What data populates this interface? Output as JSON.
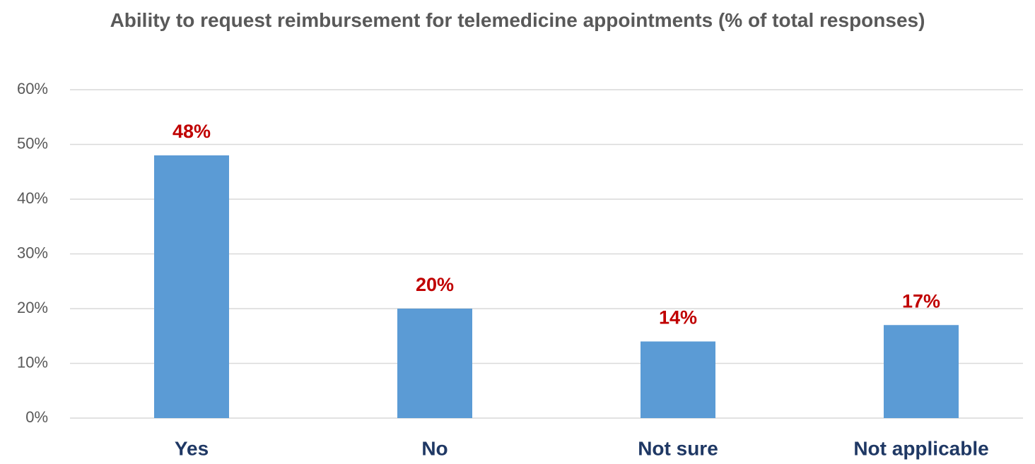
{
  "chart_data": {
    "type": "bar",
    "title": "Ability to request reimbursement for telemedicine appointments (% of total responses)",
    "categories": [
      "Yes",
      "No",
      "Not sure",
      "Not applicable"
    ],
    "values": [
      48,
      20,
      14,
      17
    ],
    "value_labels": [
      "48%",
      "20%",
      "14%",
      "17%"
    ],
    "color": "#5b9bd5",
    "ylim": [
      0,
      60
    ],
    "yticks": [
      {
        "value": 0,
        "label": "0%"
      },
      {
        "value": 10,
        "label": "10%"
      },
      {
        "value": 20,
        "label": "20%"
      },
      {
        "value": 30,
        "label": "30%"
      },
      {
        "value": 40,
        "label": "40%"
      },
      {
        "value": 50,
        "label": "50%"
      },
      {
        "value": 60,
        "label": "60%"
      }
    ],
    "grid": true
  }
}
